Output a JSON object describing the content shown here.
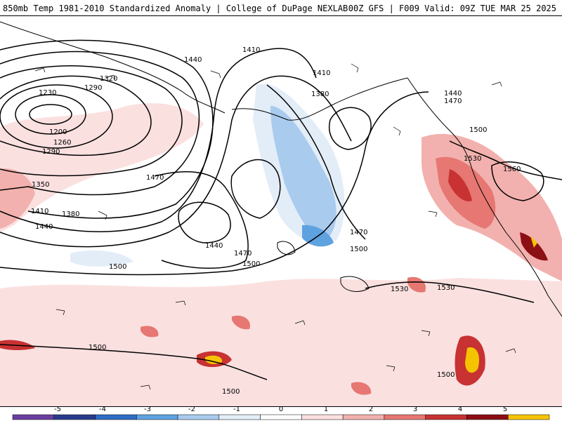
{
  "header": {
    "title": "850mb Temp 1981-2010 Standardized Anomaly | College of DuPage NEXLAB",
    "run_info": "00Z GFS | F009 Valid: 09Z TUE MAR 25 2025"
  },
  "contours": {
    "labels": [
      "1410",
      "1440",
      "1320",
      "1290",
      "1230",
      "1200",
      "1260",
      "1290",
      "1350",
      "1410",
      "1380",
      "1440",
      "1470",
      "1440",
      "1470",
      "1500",
      "1500",
      "1410",
      "1380",
      "1440",
      "1470",
      "1500",
      "1530",
      "1560",
      "1470",
      "1500",
      "1530",
      "1530",
      "1500",
      "1500",
      "1500"
    ]
  },
  "legend": {
    "ticks": [
      "-5",
      "-4",
      "-3",
      "-2",
      "-1",
      "0",
      "1",
      "2",
      "3",
      "4",
      "5"
    ],
    "colors": [
      "#6a3fa0",
      "#283c8c",
      "#2f6cc4",
      "#5fa2e0",
      "#a9cbee",
      "#e3edf8",
      "#ffffff",
      "#fbe0e0",
      "#f2b1ae",
      "#e67772",
      "#c83232",
      "#8b0f14",
      "#f5c400"
    ]
  }
}
